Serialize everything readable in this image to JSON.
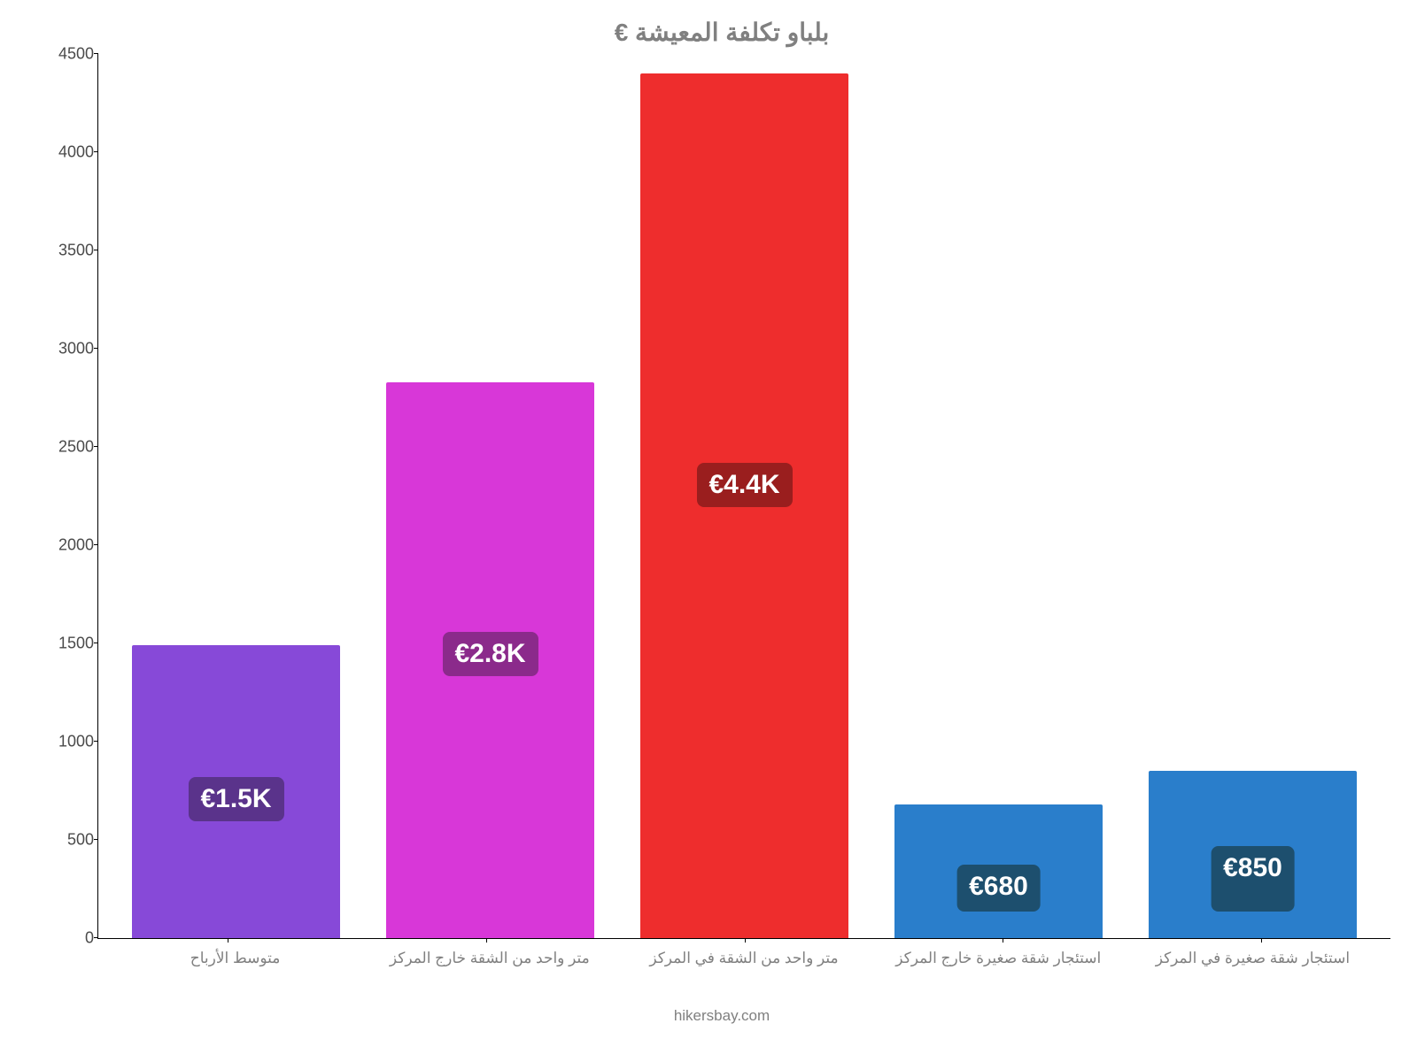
{
  "chart": {
    "type": "bar",
    "title": "بلباو تكلفة المعيشة €",
    "title_fontsize": 28,
    "title_color": "#808080",
    "background_color": "#ffffff",
    "axis_color": "#000000",
    "tick_label_color": "#4a4a4a",
    "xlabel_color": "#808080",
    "ylim": [
      0,
      4500
    ],
    "ytick_step": 500,
    "yticks": [
      0,
      500,
      1000,
      1500,
      2000,
      2500,
      3000,
      3500,
      4000,
      4500
    ],
    "bar_width": 0.82,
    "bars": [
      {
        "category": "استئجار شقة صغيرة في المركز",
        "value": 850,
        "display": "€850",
        "bar_color": "#2a7ecb",
        "badge_color": "#1d4f6e"
      },
      {
        "category": "استئجار شقة صغيرة خارج المركز",
        "value": 680,
        "display": "€680",
        "bar_color": "#2a7ecb",
        "badge_color": "#1d4f6e"
      },
      {
        "category": "متر واحد من الشقة في المركز",
        "value": 4400,
        "display": "€4.4K",
        "bar_color": "#ee2d2d",
        "badge_color": "#9a1e1e"
      },
      {
        "category": "متر واحد من الشقة خارج المركز",
        "value": 2830,
        "display": "€2.8K",
        "bar_color": "#d837d8",
        "badge_color": "#8b2a8b"
      },
      {
        "category": "متوسط الأرباح",
        "value": 1490,
        "display": "€1.5K",
        "bar_color": "#8749d8",
        "badge_color": "#5a338b"
      }
    ],
    "footer": "hikersbay.com",
    "footer_color": "#808080"
  }
}
